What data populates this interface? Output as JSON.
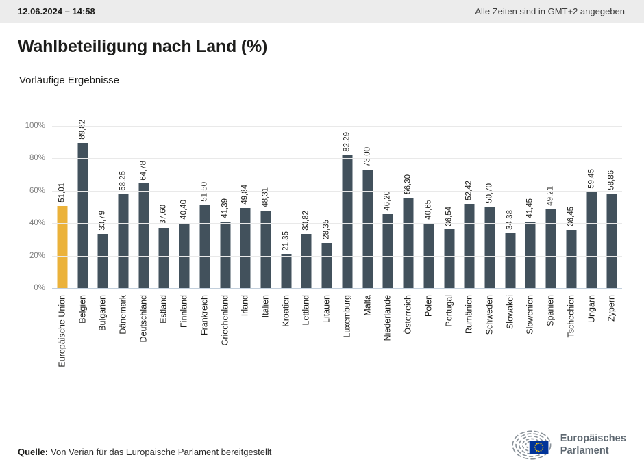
{
  "header": {
    "datetime": "12.06.2024 – 14:58",
    "timezone_note": "Alle Zeiten sind in GMT+2 angegeben"
  },
  "title": "Wahlbeteiligung nach Land (%)",
  "subtitle": "Vorläufige Ergebnisse",
  "source": {
    "label": "Quelle:",
    "text": "Von Verian für das Europäische Parlament bereitgestellt"
  },
  "logo": {
    "line1": "Europäisches",
    "line2": "Parlament"
  },
  "colors": {
    "bar_default": "#42515c",
    "bar_highlight": "#ebb23a",
    "gridline": "#e9e9e9",
    "axis_line": "#c2cfdc",
    "topbar_bg": "#ececec",
    "text_dark": "#1d1d1b",
    "axis_label_gray": "#7f7f7f",
    "logo_gray": "#5d6770",
    "flag_blue": "#003399",
    "flag_stars": "#ffcc00"
  },
  "chart_data": {
    "type": "bar",
    "title": "Wahlbeteiligung nach Land (%)",
    "subtitle": "Vorläufige Ergebnisse",
    "xlabel": "",
    "ylabel": "",
    "ylim": [
      0,
      100
    ],
    "grid": true,
    "legend": false,
    "yticks": [
      "0%",
      "20%",
      "40%",
      "60%",
      "80%",
      "100%"
    ],
    "highlight_index": 0,
    "value_decimal_separator": ",",
    "categories": [
      "Europäische Union",
      "Belgien",
      "Bulgarien",
      "Dänemark",
      "Deutschland",
      "Estland",
      "Finnland",
      "Frankreich",
      "Griechenland",
      "Irland",
      "Italien",
      "Kroatien",
      "Lettland",
      "Litauen",
      "Luxemburg",
      "Malta",
      "Niederlande",
      "Österreich",
      "Polen",
      "Portugal",
      "Rumänien",
      "Schweden",
      "Slowakei",
      "Slowenien",
      "Spanien",
      "Tschechien",
      "Ungarn",
      "Zypern"
    ],
    "values": [
      51.01,
      89.82,
      33.79,
      58.25,
      64.78,
      37.6,
      40.4,
      51.5,
      41.39,
      49.84,
      48.31,
      21.35,
      33.82,
      28.35,
      82.29,
      73.0,
      46.2,
      56.3,
      40.65,
      36.54,
      52.42,
      50.7,
      34.38,
      41.45,
      49.21,
      36.45,
      59.45,
      58.86
    ],
    "value_labels": [
      "51,01",
      "89,82",
      "33,79",
      "58,25",
      "64,78",
      "37,60",
      "40,40",
      "51,50",
      "41,39",
      "49,84",
      "48,31",
      "21,35",
      "33,82",
      "28,35",
      "82,29",
      "73,00",
      "46,20",
      "56,30",
      "40,65",
      "36,54",
      "52,42",
      "50,70",
      "34,38",
      "41,45",
      "49,21",
      "36,45",
      "59,45",
      "58,86"
    ]
  }
}
